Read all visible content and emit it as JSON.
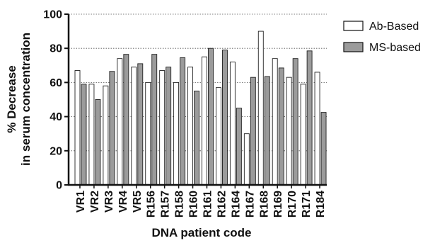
{
  "chart_data": {
    "type": "bar",
    "title": "",
    "xlabel": "DNA patient code",
    "ylabel_lines": [
      "% Decrease",
      "in serum concentration"
    ],
    "ylim": [
      0,
      100
    ],
    "yticks": [
      0,
      20,
      40,
      60,
      80,
      100
    ],
    "grid": "horizontal dotted",
    "legend_position": "right",
    "categories": [
      "VR1",
      "VR2",
      "VR3",
      "VR4",
      "VR5",
      "R156",
      "R157",
      "R158",
      "R160",
      "R161",
      "R162",
      "R164",
      "R167",
      "R168",
      "R169",
      "R170",
      "R171",
      "R184"
    ],
    "series": [
      {
        "name": "Ab-Based",
        "color": "#ffffff",
        "values": [
          67,
          59,
          58,
          74,
          69,
          60,
          67,
          60,
          69,
          75,
          57,
          72,
          30,
          90,
          74,
          63,
          59,
          66
        ]
      },
      {
        "name": "MS-based",
        "color": "#9b9b9b",
        "values": [
          59,
          50,
          66.5,
          76.5,
          71,
          76.5,
          69,
          74.5,
          55,
          80,
          79,
          45,
          63,
          63.5,
          68.5,
          74,
          78.5,
          42.5
        ]
      }
    ]
  }
}
